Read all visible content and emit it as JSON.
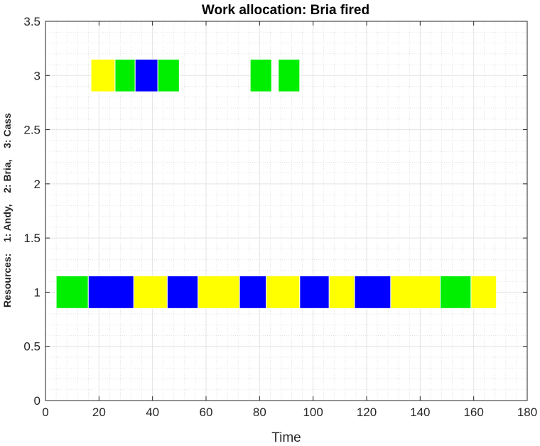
{
  "chart_data": {
    "type": "gantt",
    "title": "Work allocation: Bria fired",
    "xlabel": "Time",
    "ylabel": "Resources:    1: Andy,    2: Bria,    3: Cass",
    "xlim": [
      0,
      180
    ],
    "ylim": [
      0,
      3.5
    ],
    "xticks": [
      "0",
      "20",
      "40",
      "60",
      "80",
      "100",
      "120",
      "140",
      "160",
      "180"
    ],
    "yticks": [
      "0",
      "0.5",
      "1",
      "1.5",
      "2",
      "2.5",
      "3",
      "3.5"
    ],
    "grid": "major and minor",
    "colors": {
      "green": "#00ee00",
      "blue": "#0000ff",
      "yellow": "#ffff00"
    },
    "bar_height": 0.3,
    "tasks": [
      {
        "resource": 1,
        "start": 4,
        "end": 16,
        "color": "green"
      },
      {
        "resource": 1,
        "start": 16,
        "end": 33,
        "color": "blue"
      },
      {
        "resource": 1,
        "start": 33,
        "end": 45.5,
        "color": "yellow"
      },
      {
        "resource": 1,
        "start": 45.5,
        "end": 57,
        "color": "blue"
      },
      {
        "resource": 1,
        "start": 57,
        "end": 72.5,
        "color": "yellow"
      },
      {
        "resource": 1,
        "start": 72.5,
        "end": 82.5,
        "color": "blue"
      },
      {
        "resource": 1,
        "start": 82.5,
        "end": 95,
        "color": "yellow"
      },
      {
        "resource": 1,
        "start": 95,
        "end": 106,
        "color": "blue"
      },
      {
        "resource": 1,
        "start": 106,
        "end": 115.5,
        "color": "yellow"
      },
      {
        "resource": 1,
        "start": 115.5,
        "end": 129,
        "color": "blue"
      },
      {
        "resource": 1,
        "start": 129,
        "end": 147.5,
        "color": "yellow"
      },
      {
        "resource": 1,
        "start": 147.5,
        "end": 159,
        "color": "green"
      },
      {
        "resource": 1,
        "start": 159,
        "end": 168.5,
        "color": "yellow"
      },
      {
        "resource": 3,
        "start": 17,
        "end": 26,
        "color": "yellow"
      },
      {
        "resource": 3,
        "start": 26,
        "end": 33.5,
        "color": "green"
      },
      {
        "resource": 3,
        "start": 33.5,
        "end": 42,
        "color": "blue"
      },
      {
        "resource": 3,
        "start": 42,
        "end": 50,
        "color": "green"
      },
      {
        "resource": 3,
        "start": 76.5,
        "end": 84.5,
        "color": "green"
      },
      {
        "resource": 3,
        "start": 87,
        "end": 95,
        "color": "green"
      }
    ]
  }
}
